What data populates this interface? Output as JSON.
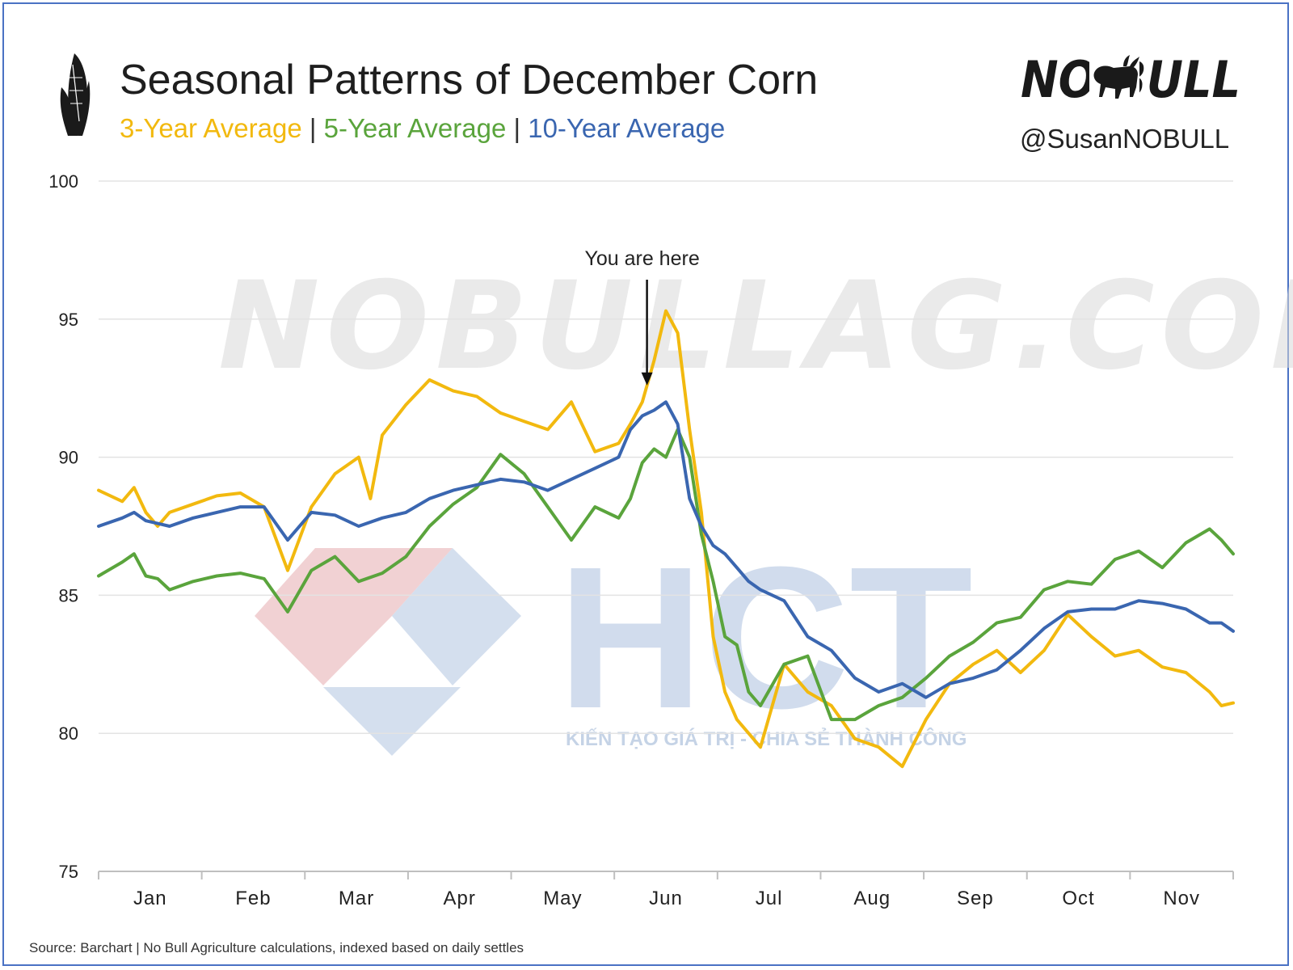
{
  "header": {
    "title": "Seasonal Patterns of December Corn",
    "subtitle_parts": [
      {
        "text": "3-Year Average",
        "color": "#f2b90f"
      },
      {
        "text": " | ",
        "color": "#333333"
      },
      {
        "text": "5-Year Average",
        "color": "#5aa43c"
      },
      {
        "text": " | ",
        "color": "#333333"
      },
      {
        "text": "10-Year Average",
        "color": "#3a66b0"
      }
    ],
    "brand_logo": "NO BULL",
    "handle": "@SusanNOBULL",
    "corn_icon": "corn-icon",
    "bull_icon": "bull-icon"
  },
  "watermarks": {
    "site": "NOBULLAG.COM",
    "company": "HCT",
    "company_tagline": "KIẾN TẠO GIÁ TRỊ - CHIA SẺ THÀNH CÔNG"
  },
  "footer": {
    "source": "Source: Barchart | No Bull Agriculture calculations, indexed based on daily settles"
  },
  "chart_data": {
    "type": "line",
    "x_unit": "week index from start of January (0 = Jan 1, 48 = end of November)",
    "xlim": [
      0,
      48
    ],
    "ylim": [
      75,
      100
    ],
    "yticks": [
      75,
      80,
      85,
      90,
      95,
      100
    ],
    "grid": true,
    "month_labels": [
      "Jan",
      "Feb",
      "Mar",
      "Apr",
      "May",
      "Jun",
      "Jul",
      "Aug",
      "Sep",
      "Oct",
      "Nov"
    ],
    "annotation": {
      "text": "You are here",
      "x": 23.2,
      "y_target": 92.6
    },
    "series": [
      {
        "name": "3-Year Average",
        "color": "#f2b90f",
        "x": [
          0,
          1,
          1.5,
          2,
          2.5,
          3,
          4,
          5,
          6,
          7,
          8,
          9,
          10,
          11,
          11.5,
          12,
          13,
          14,
          15,
          16,
          17,
          18,
          19,
          20,
          21,
          22,
          22.5,
          23,
          23.5,
          24,
          24.5,
          25,
          25.5,
          26,
          26.5,
          27,
          27.5,
          28,
          29,
          30,
          31,
          32,
          33,
          34,
          35,
          36,
          37,
          38,
          39,
          40,
          41,
          42,
          43,
          44,
          45,
          46,
          47,
          47.5,
          48
        ],
        "values": [
          88.8,
          88.4,
          88.9,
          88.0,
          87.5,
          88.0,
          88.3,
          88.6,
          88.7,
          88.2,
          85.9,
          88.2,
          89.4,
          90.0,
          88.5,
          90.8,
          91.9,
          92.8,
          92.4,
          92.2,
          91.6,
          91.3,
          91.0,
          92.0,
          90.2,
          90.5,
          91.2,
          92.0,
          93.5,
          95.3,
          94.5,
          91.0,
          88.0,
          83.5,
          81.5,
          80.5,
          80.0,
          79.5,
          82.5,
          81.5,
          81.0,
          79.8,
          79.5,
          78.8,
          80.5,
          81.8,
          82.5,
          83.0,
          82.2,
          83.0,
          84.3,
          83.5,
          82.8,
          83.0,
          82.4,
          82.2,
          81.5,
          81.0,
          81.1
        ]
      },
      {
        "name": "5-Year Average",
        "color": "#5aa43c",
        "x": [
          0,
          1,
          1.5,
          2,
          2.5,
          3,
          4,
          5,
          6,
          7,
          8,
          9,
          10,
          11,
          12,
          13,
          14,
          15,
          16,
          17,
          18,
          19,
          20,
          21,
          22,
          22.5,
          23,
          23.5,
          24,
          24.5,
          25,
          25.5,
          26,
          26.5,
          27,
          27.5,
          28,
          29,
          30,
          31,
          32,
          33,
          34,
          35,
          36,
          37,
          38,
          39,
          40,
          41,
          42,
          43,
          44,
          45,
          46,
          47,
          47.5,
          48
        ],
        "values": [
          85.7,
          86.2,
          86.5,
          85.7,
          85.6,
          85.2,
          85.5,
          85.7,
          85.8,
          85.6,
          84.4,
          85.9,
          86.4,
          85.5,
          85.8,
          86.4,
          87.5,
          88.3,
          88.9,
          90.1,
          89.4,
          88.2,
          87.0,
          88.2,
          87.8,
          88.5,
          89.8,
          90.3,
          90.0,
          91.0,
          90.0,
          87.2,
          85.5,
          83.5,
          83.2,
          81.5,
          81.0,
          82.5,
          82.8,
          80.5,
          80.5,
          81.0,
          81.3,
          82.0,
          82.8,
          83.3,
          84.0,
          84.2,
          85.2,
          85.5,
          85.4,
          86.3,
          86.6,
          86.0,
          86.9,
          87.4,
          87.0,
          86.5
        ]
      },
      {
        "name": "10-Year Average",
        "color": "#3a66b0",
        "x": [
          0,
          1,
          1.5,
          2,
          2.5,
          3,
          4,
          5,
          6,
          7,
          8,
          9,
          10,
          11,
          12,
          13,
          14,
          15,
          16,
          17,
          18,
          19,
          20,
          21,
          22,
          22.5,
          23,
          23.5,
          24,
          24.5,
          25,
          25.5,
          26,
          26.5,
          27,
          27.5,
          28,
          29,
          30,
          31,
          32,
          33,
          34,
          35,
          36,
          37,
          38,
          39,
          40,
          41,
          42,
          43,
          44,
          45,
          46,
          47,
          47.5,
          48
        ],
        "values": [
          87.5,
          87.8,
          88.0,
          87.7,
          87.6,
          87.5,
          87.8,
          88.0,
          88.2,
          88.2,
          87.0,
          88.0,
          87.9,
          87.5,
          87.8,
          88.0,
          88.5,
          88.8,
          89.0,
          89.2,
          89.1,
          88.8,
          89.2,
          89.6,
          90.0,
          91.0,
          91.5,
          91.7,
          92.0,
          91.2,
          88.5,
          87.5,
          86.8,
          86.5,
          86.0,
          85.5,
          85.2,
          84.8,
          83.5,
          83.0,
          82.0,
          81.5,
          81.8,
          81.3,
          81.8,
          82.0,
          82.3,
          83.0,
          83.8,
          84.4,
          84.5,
          84.5,
          84.8,
          84.7,
          84.5,
          84.0,
          84.0,
          83.7
        ]
      }
    ]
  }
}
